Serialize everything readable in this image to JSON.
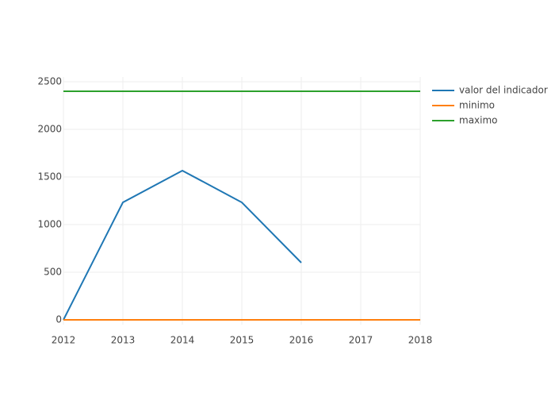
{
  "chart_data": {
    "type": "line",
    "x": [
      2012,
      2013,
      2014,
      2015,
      2016,
      2017,
      2018
    ],
    "series": [
      {
        "name": "valor del indicador",
        "color": "#1f77b4",
        "values": [
          0,
          1233,
          1567,
          1233,
          600,
          null,
          null
        ]
      },
      {
        "name": "minimo",
        "color": "#ff7f0e",
        "values": [
          0,
          0,
          0,
          0,
          0,
          0,
          0
        ]
      },
      {
        "name": "maximo",
        "color": "#2ca02c",
        "values": [
          2400,
          2400,
          2400,
          2400,
          2400,
          2400,
          2400
        ]
      }
    ],
    "xlim": [
      2012,
      2018
    ],
    "xticks": [
      2012,
      2013,
      2014,
      2015,
      2016,
      2017,
      2018
    ],
    "ylim": [
      -50,
      2550
    ],
    "yticks": [
      0,
      500,
      1000,
      1500,
      2000,
      2500
    ],
    "grid": true,
    "legend": "top-right"
  }
}
